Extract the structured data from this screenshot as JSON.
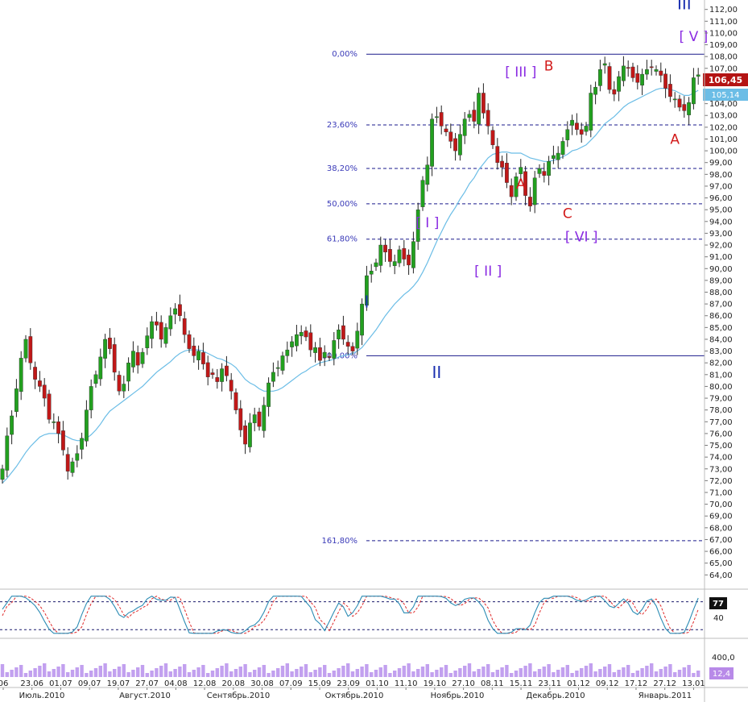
{
  "chart_data": [
    {
      "type": "candlestick",
      "ylim": [
        63.2,
        112.8
      ],
      "y_ticks": [
        "112,00",
        "111,00",
        "110,00",
        "109,00",
        "108,00",
        "107,00",
        "106,00",
        "105,00",
        "104,00",
        "103,00",
        "102,00",
        "101,00",
        "100,00",
        "99,00",
        "98,00",
        "97,00",
        "96,00",
        "95,00",
        "94,00",
        "93,00",
        "92,00",
        "91,00",
        "90,00",
        "89,00",
        "88,00",
        "87,00",
        "86,00",
        "85,00",
        "84,00",
        "83,00",
        "82,00",
        "81,00",
        "80,00",
        "79,00",
        "78,00",
        "77,00",
        "76,00",
        "75,00",
        "74,00",
        "73,00",
        "72,00",
        "71,00",
        "70,00",
        "69,00",
        "68,00",
        "67,00",
        "66,00",
        "65,00",
        "64,00"
      ],
      "x_ticks": [
        "06",
        "23.06",
        "01.07",
        "09.07",
        "19.07",
        "27.07",
        "04.08",
        "12.08",
        "20.08",
        "30.08",
        "07.09",
        "15.09",
        "23.09",
        "01.10",
        "11.10",
        "19.10",
        "27.10",
        "08.11",
        "15.11",
        "23.11",
        "01.12",
        "09.12",
        "17.12",
        "27.12",
        "13.01"
      ],
      "months": [
        "Июль.2010",
        "Август.2010",
        "Сентябрь.2010",
        "Октябрь.2010",
        "Ноябрь.2010",
        "Декабрь.2010",
        "Январь.2011"
      ],
      "last_price": "106,45",
      "ma_value": "105,14",
      "close": [
        73.0,
        75.8,
        77.5,
        79.8,
        82.4,
        84.0,
        82.0,
        80.6,
        80.0,
        79.0,
        77.2,
        77.0,
        76.0,
        74.6,
        72.8,
        73.6,
        74.3,
        75.6,
        78.0,
        80.0,
        81.0,
        82.5,
        84.0,
        83.2,
        81.2,
        79.6,
        80.2,
        82.0,
        83.0,
        81.8,
        82.9,
        84.3,
        85.5,
        85.2,
        84.0,
        85.0,
        86.0,
        86.6,
        86.0,
        84.4,
        83.2,
        82.6,
        83.0,
        81.9,
        80.8,
        81.0,
        80.4,
        81.5,
        80.9,
        79.6,
        78.0,
        76.3,
        75.1,
        76.9,
        77.6,
        76.6,
        78.4,
        80.3,
        81.2,
        81.6,
        82.6,
        83.1,
        83.8,
        84.4,
        84.6,
        84.2,
        83.1,
        83.3,
        82.2,
        82.9,
        82.5,
        83.9,
        84.8,
        84.0,
        83.4,
        83.0,
        84.7,
        87.0,
        89.4,
        89.8,
        90.5,
        92.0,
        91.4,
        90.6,
        90.6,
        91.6,
        90.8,
        90.3,
        92.3,
        95.0,
        97.5,
        98.8,
        102.7,
        102.9,
        102.1,
        101.6,
        100.8,
        100.0,
        101.4,
        102.7,
        103.1,
        102.5,
        104.9,
        103.2,
        102.1,
        100.5,
        99.0,
        98.6,
        97.3,
        96.1,
        97.8,
        98.6,
        96.2,
        95.3,
        97.7,
        98.5,
        97.9,
        99.1,
        99.6,
        99.8,
        100.8,
        101.8,
        102.6,
        101.8,
        101.4,
        102.1,
        104.9,
        105.4,
        106.9,
        107.4,
        105.2,
        104.8,
        106.3,
        107.2,
        107.0,
        106.2,
        105.8,
        106.5,
        106.9,
        107.1,
        106.9,
        106.4,
        105.3,
        104.6,
        104.4,
        103.7,
        103.4,
        104.1,
        106.2,
        106.45
      ],
      "ma": [
        71.8,
        72.2,
        72.7,
        73.2,
        73.8,
        74.4,
        74.9,
        75.3,
        75.7,
        75.9,
        76.0,
        76.0,
        76.0,
        75.9,
        75.7,
        75.5,
        75.4,
        75.4,
        75.6,
        75.9,
        76.3,
        76.8,
        77.4,
        77.9,
        78.2,
        78.5,
        78.8,
        79.1,
        79.4,
        79.7,
        80.0,
        80.4,
        80.8,
        81.2,
        81.5,
        81.8,
        82.1,
        82.5,
        82.8,
        83.0,
        83.1,
        83.1,
        83.1,
        83.0,
        82.8,
        82.6,
        82.4,
        82.3,
        82.1,
        81.9,
        81.6,
        81.1,
        80.6,
        80.3,
        80.1,
        79.8,
        79.6,
        79.6,
        79.6,
        79.7,
        79.9,
        80.2,
        80.5,
        80.8,
        81.1,
        81.3,
        81.6,
        81.8,
        82.0,
        82.1,
        82.2,
        82.3,
        82.5,
        82.6,
        82.7,
        82.8,
        83.0,
        83.3,
        83.8,
        84.3,
        84.8,
        85.4,
        86.0,
        86.5,
        87.0,
        87.4,
        87.8,
        88.1,
        88.5,
        89.0,
        89.7,
        90.5,
        91.4,
        92.3,
        93.1,
        93.9,
        94.6,
        95.2,
        95.9,
        96.5,
        97.2,
        97.7,
        98.4,
        98.9,
        99.4,
        99.7,
        99.8,
        99.9,
        99.9,
        99.8,
        99.8,
        99.8,
        99.6,
        99.4,
        99.3,
        99.2,
        99.1,
        99.1,
        99.2,
        99.3,
        99.5,
        99.7,
        100.0,
        100.1,
        100.3,
        100.5,
        100.9,
        101.3,
        101.8,
        102.3,
        102.6,
        102.9,
        103.3,
        103.7,
        104.0,
        104.2,
        104.4,
        104.6,
        104.8,
        105.0,
        105.2,
        105.3,
        105.3,
        105.2,
        105.1,
        104.9,
        104.7,
        104.7,
        104.9,
        105.14
      ],
      "fib_levels": [
        {
          "label": "0,00%",
          "value": 108.2
        },
        {
          "label": "23,60%",
          "value": 102.2
        },
        {
          "label": "38,20%",
          "value": 98.5
        },
        {
          "label": "50,00%",
          "value": 95.5
        },
        {
          "label": "61,80%",
          "value": 92.5
        },
        {
          "label": "100,00%",
          "value": 82.6
        },
        {
          "label": "161,80%",
          "value": 66.9
        }
      ],
      "wave_labels": [
        {
          "text": "I",
          "style": "blue",
          "index": 78,
          "value": 86.7
        },
        {
          "text": "II",
          "style": "blue",
          "index": 93,
          "value": 80.7
        },
        {
          "text": "III",
          "style": "blue",
          "index": 146,
          "value": 112.0
        },
        {
          "text": "[ I ]",
          "style": "purple",
          "index": 91,
          "value": 93.5
        },
        {
          "text": "[ II ]",
          "style": "purple",
          "index": 104,
          "value": 89.4
        },
        {
          "text": "[ III ]",
          "style": "purple",
          "index": 111,
          "value": 106.3
        },
        {
          "text": "[ V ]",
          "style": "purple",
          "index": 148,
          "value": 109.3
        },
        {
          "text": "[ VI ]",
          "style": "purple",
          "index": 124,
          "value": 92.3
        },
        {
          "text": "A",
          "style": "red",
          "index": 111,
          "value": 96.8
        },
        {
          "text": "B",
          "style": "red",
          "index": 117,
          "value": 106.8
        },
        {
          "text": "C",
          "style": "red",
          "index": 121,
          "value": 94.3
        },
        {
          "text": "A",
          "style": "red",
          "index": 144,
          "value": 100.6
        }
      ]
    },
    {
      "type": "line",
      "name_value": "77",
      "second_value": "40",
      "ylim": [
        10,
        95
      ],
      "levels": [
        80,
        20
      ]
    },
    {
      "type": "bar",
      "value_top": "400,0",
      "value_last": "12,4"
    }
  ],
  "colors": {
    "up": "#22a01f",
    "down": "#c01818",
    "ma": "#6bbde6",
    "fib": "#1a1a8c",
    "last_price_bg": "#b41414",
    "ma_badge_bg": "#6bbde6",
    "volume": "#c2a0ef",
    "oscillator": "#2c8cb4",
    "signal": "#e02a2a"
  }
}
